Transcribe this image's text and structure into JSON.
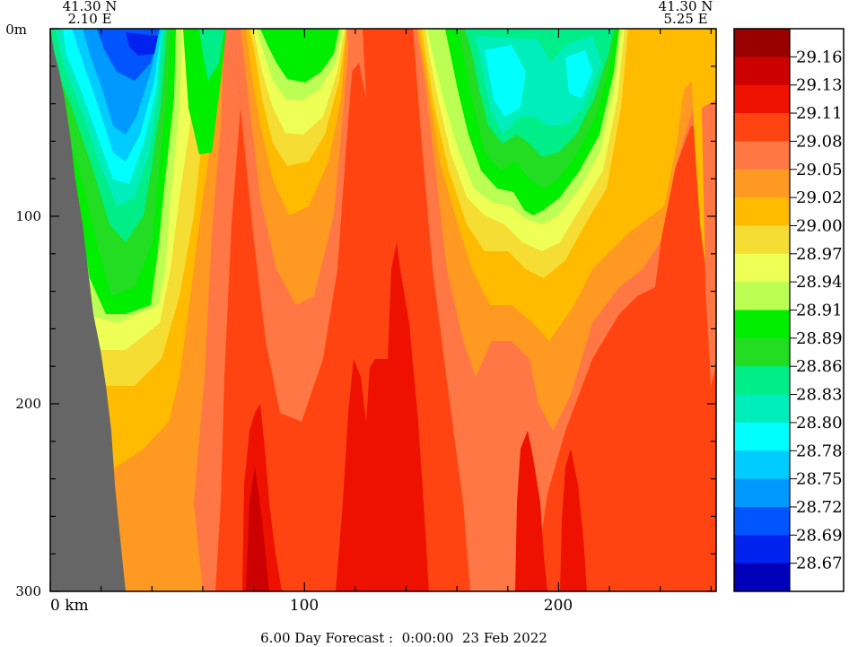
{
  "chart_data": {
    "type": "heatmap",
    "title": "",
    "corner_left": {
      "lat": "41.30 N",
      "lon": "2.10 E"
    },
    "corner_right": {
      "lat": "41.30 N",
      "lon": "5.25 E"
    },
    "y_ticks": [
      {
        "value": 0,
        "label": "0m"
      },
      {
        "value": 100,
        "label": "100"
      },
      {
        "value": 200,
        "label": "200"
      },
      {
        "value": 300,
        "label": "300"
      }
    ],
    "x_ticks": [
      {
        "value": 0,
        "label": "0 km"
      },
      {
        "value": 100,
        "label": "100"
      },
      {
        "value": 200,
        "label": "200"
      }
    ],
    "xlim": [
      0,
      262
    ],
    "ylim": [
      0,
      300
    ],
    "footer": "6.00 Day Forecast :  0:00:00  23 Feb 2022",
    "colorbar": [
      {
        "label": "29.16",
        "color": "#990000"
      },
      {
        "label": "29.13",
        "color": "#cc0000"
      },
      {
        "label": "29.11",
        "color": "#ee1100"
      },
      {
        "label": "29.08",
        "color": "#ff4411"
      },
      {
        "label": "29.05",
        "color": "#ff7744"
      },
      {
        "label": "29.02",
        "color": "#ff9922"
      },
      {
        "label": "29.00",
        "color": "#ffbb00"
      },
      {
        "label": "28.97",
        "color": "#f5dd33"
      },
      {
        "label": "28.94",
        "color": "#eeff55"
      },
      {
        "label": "28.91",
        "color": "#bbff55"
      },
      {
        "label": "28.89",
        "color": "#00ee00"
      },
      {
        "label": "28.86",
        "color": "#22dd22"
      },
      {
        "label": "28.83",
        "color": "#00ee88"
      },
      {
        "label": "28.80",
        "color": "#00eebb"
      },
      {
        "label": "28.78",
        "color": "#00ffff"
      },
      {
        "label": "28.75",
        "color": "#00ccff"
      },
      {
        "label": "28.72",
        "color": "#0099ff"
      },
      {
        "label": "28.69",
        "color": "#0055ff"
      },
      {
        "label": "28.67",
        "color": "#0022ee"
      },
      {
        "label": "",
        "color": "#0000bb"
      }
    ],
    "land_color": "#666666"
  }
}
